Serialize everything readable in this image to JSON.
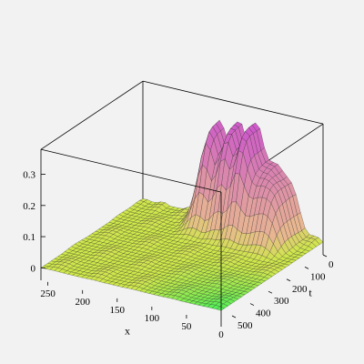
{
  "chart_data": {
    "type": "surface3d",
    "title": "",
    "x_axis": {
      "label": "x",
      "ticks": [
        250,
        200,
        150,
        100,
        50,
        0
      ],
      "range": [
        0,
        260
      ]
    },
    "t_axis": {
      "label": "t",
      "ticks": [
        0,
        100,
        200,
        300,
        400,
        500
      ],
      "range": [
        0,
        560
      ]
    },
    "z_axis": {
      "label": "",
      "ticks": [
        "0.3",
        "0.2",
        "0.1",
        "0"
      ],
      "range": [
        -0.04,
        0.38
      ]
    },
    "surface": {
      "description_peaks_at_t0": [
        {
          "x": 150,
          "z": 0.34
        },
        {
          "x": 120,
          "z": 0.33
        },
        {
          "x": 95,
          "z": 0.34
        },
        {
          "x": 65,
          "z": 0.21
        },
        {
          "x": 45,
          "z": 0.2
        }
      ],
      "baseline": 0.0,
      "colormap_low": "#cfe84a",
      "colormap_mid": "#e8b890",
      "colormap_high": "#cc55cc",
      "colormap_green": "#55ee55"
    },
    "box": true,
    "grid": false
  }
}
